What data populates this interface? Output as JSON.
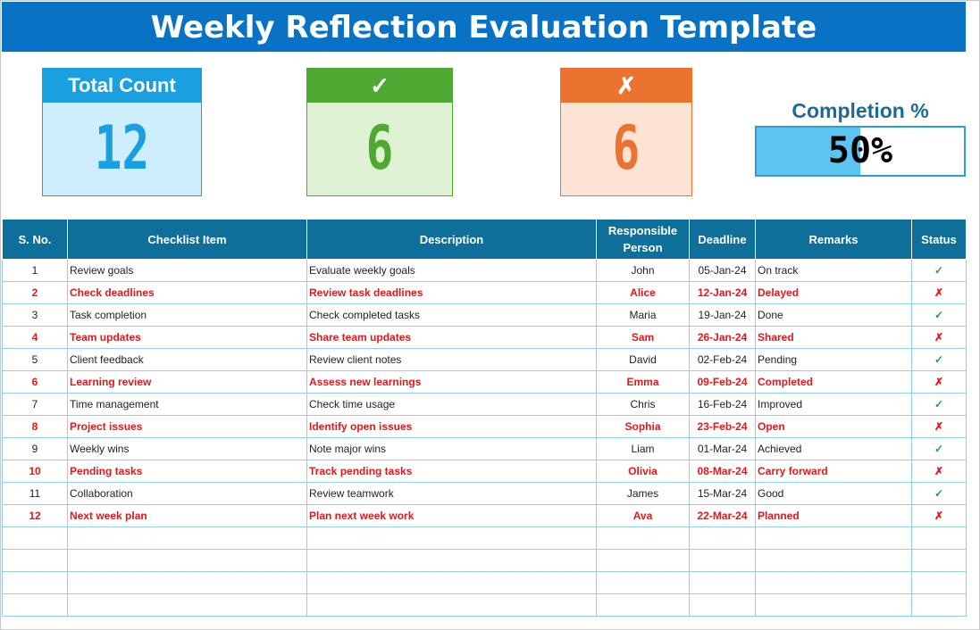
{
  "title": "Weekly Reflection Evaluation Template",
  "cards": {
    "total": {
      "label": "Total Count",
      "value": "12"
    },
    "done": {
      "label": "✓",
      "value": "6"
    },
    "pending": {
      "label": "✗",
      "value": "6"
    }
  },
  "completion": {
    "label": "Completion %",
    "value": "50%",
    "fraction": 0.5
  },
  "colors": {
    "title_bg": "#0a72c4",
    "header_bg": "#0e6f9b",
    "ok": "#22a23a",
    "no": "#e0191e"
  },
  "table": {
    "headers": [
      "S. No.",
      "Checklist Item",
      "Description",
      "Responsible Person",
      "Deadline",
      "Remarks",
      "Status"
    ],
    "rows": [
      {
        "no": "1",
        "item": "Review goals",
        "desc": "Evaluate weekly goals",
        "person": "John",
        "deadline": "05-Jan-24",
        "remarks": "On track",
        "status": "✓"
      },
      {
        "no": "2",
        "item": "Check deadlines",
        "desc": "Review task deadlines",
        "person": "Alice",
        "deadline": "12-Jan-24",
        "remarks": "Delayed",
        "status": "✗"
      },
      {
        "no": "3",
        "item": "Task completion",
        "desc": "Check completed tasks",
        "person": "Maria",
        "deadline": "19-Jan-24",
        "remarks": "Done",
        "status": "✓"
      },
      {
        "no": "4",
        "item": "Team updates",
        "desc": "Share team updates",
        "person": "Sam",
        "deadline": "26-Jan-24",
        "remarks": "Shared",
        "status": "✗"
      },
      {
        "no": "5",
        "item": "Client feedback",
        "desc": "Review client notes",
        "person": "David",
        "deadline": "02-Feb-24",
        "remarks": "Pending",
        "status": "✓"
      },
      {
        "no": "6",
        "item": "Learning review",
        "desc": "Assess new learnings",
        "person": "Emma",
        "deadline": "09-Feb-24",
        "remarks": "Completed",
        "status": "✗"
      },
      {
        "no": "7",
        "item": "Time management",
        "desc": "Check time usage",
        "person": "Chris",
        "deadline": "16-Feb-24",
        "remarks": "Improved",
        "status": "✓"
      },
      {
        "no": "8",
        "item": "Project issues",
        "desc": "Identify open issues",
        "person": "Sophia",
        "deadline": "23-Feb-24",
        "remarks": "Open",
        "status": "✗"
      },
      {
        "no": "9",
        "item": "Weekly wins",
        "desc": "Note major wins",
        "person": "Liam",
        "deadline": "01-Mar-24",
        "remarks": "Achieved",
        "status": "✓"
      },
      {
        "no": "10",
        "item": "Pending tasks",
        "desc": "Track pending tasks",
        "person": "Olivia",
        "deadline": "08-Mar-24",
        "remarks": "Carry forward",
        "status": "✗"
      },
      {
        "no": "11",
        "item": "Collaboration",
        "desc": "Review teamwork",
        "person": "James",
        "deadline": "15-Mar-24",
        "remarks": "Good",
        "status": "✓"
      },
      {
        "no": "12",
        "item": "Next week plan",
        "desc": "Plan next week work",
        "person": "Ava",
        "deadline": "22-Mar-24",
        "remarks": "Planned",
        "status": "✗"
      }
    ]
  }
}
